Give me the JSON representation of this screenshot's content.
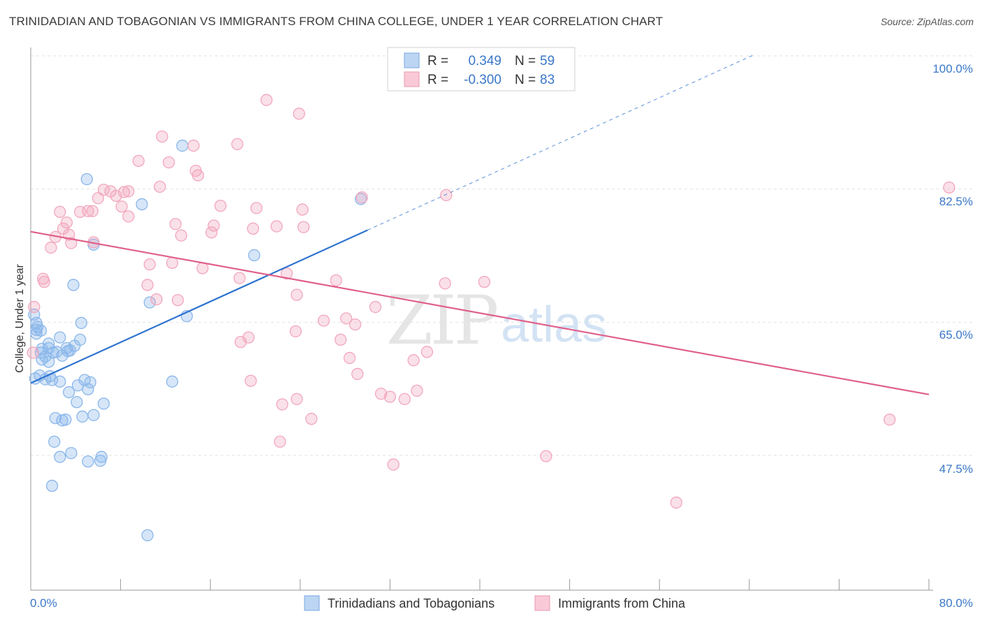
{
  "chart_data": {
    "type": "scatter",
    "title": "TRINIDADIAN AND TOBAGONIAN VS IMMIGRANTS FROM CHINA COLLEGE, UNDER 1 YEAR CORRELATION CHART",
    "source": "Source: ZipAtlas.com",
    "ylabel": "College, Under 1 year",
    "xlim": [
      0,
      80
    ],
    "ylim": [
      32,
      101
    ],
    "y_ticks": [
      {
        "value": 100.0,
        "label": "100.0%"
      },
      {
        "value": 82.5,
        "label": "82.5%"
      },
      {
        "value": 65.0,
        "label": "65.0%"
      },
      {
        "value": 47.5,
        "label": "47.5%"
      }
    ],
    "x_tick_labels": {
      "left": "0.0%",
      "right": "80.0%"
    },
    "watermark": {
      "zip": "ZIP",
      "atlas": "atlas"
    },
    "legend": {
      "r_label": "R =",
      "n_label": "N =",
      "entries": [
        {
          "r": "0.349",
          "n": "59"
        },
        {
          "r": "-0.300",
          "n": "83"
        }
      ]
    },
    "series": [
      {
        "name": "Trinidadians and Tobagonians",
        "color": "#8ab6ea",
        "line_color": "#2f73cf",
        "trend": {
          "x0": 0,
          "y0": 57.0,
          "x1": 30,
          "y1": 77.1,
          "dash_x1": 64.5,
          "dash_y1": 100.2
        },
        "points": [
          [
            0.3,
            66.0
          ],
          [
            0.5,
            64.9
          ],
          [
            0.6,
            64.4
          ],
          [
            0.5,
            64.0
          ],
          [
            0.9,
            63.9
          ],
          [
            0.5,
            63.5
          ],
          [
            1.0,
            61.5
          ],
          [
            0.9,
            61.0
          ],
          [
            1.3,
            60.5
          ],
          [
            1.6,
            62.2
          ],
          [
            1.6,
            61.6
          ],
          [
            2.0,
            61.0
          ],
          [
            0.8,
            58.0
          ],
          [
            1.3,
            57.5
          ],
          [
            1.7,
            57.9
          ],
          [
            1.9,
            57.4
          ],
          [
            1.6,
            59.8
          ],
          [
            2.6,
            57.2
          ],
          [
            2.6,
            63.0
          ],
          [
            2.8,
            60.6
          ],
          [
            3.2,
            61.6
          ],
          [
            3.3,
            61.2
          ],
          [
            3.9,
            61.9
          ],
          [
            4.5,
            64.9
          ],
          [
            4.4,
            62.7
          ],
          [
            3.4,
            55.8
          ],
          [
            4.2,
            56.7
          ],
          [
            4.8,
            57.4
          ],
          [
            5.1,
            56.2
          ],
          [
            5.3,
            57.1
          ],
          [
            4.1,
            54.5
          ],
          [
            4.6,
            52.6
          ],
          [
            5.6,
            52.8
          ],
          [
            6.5,
            54.3
          ],
          [
            2.2,
            52.4
          ],
          [
            2.8,
            52.1
          ],
          [
            3.1,
            52.2
          ],
          [
            2.1,
            49.3
          ],
          [
            2.6,
            47.3
          ],
          [
            3.6,
            47.8
          ],
          [
            5.1,
            46.7
          ],
          [
            6.2,
            46.8
          ],
          [
            6.3,
            47.3
          ],
          [
            1.9,
            43.5
          ],
          [
            5.0,
            83.8
          ],
          [
            3.8,
            69.9
          ],
          [
            5.6,
            75.2
          ],
          [
            9.9,
            80.5
          ],
          [
            10.6,
            67.6
          ],
          [
            13.5,
            88.2
          ],
          [
            13.9,
            65.8
          ],
          [
            12.6,
            57.2
          ],
          [
            19.9,
            73.8
          ],
          [
            29.4,
            81.2
          ],
          [
            10.4,
            37.0
          ],
          [
            0.4,
            57.6
          ],
          [
            1.0,
            60.1
          ],
          [
            2.3,
            61.1
          ],
          [
            3.5,
            61.3
          ]
        ]
      },
      {
        "name": "Immigrants from China",
        "color": "#f2a7bd",
        "line_color": "#e0608a",
        "trend": {
          "x0": 0,
          "y0": 76.9,
          "x1": 80,
          "y1": 55.5
        },
        "points": [
          [
            0.3,
            67.0
          ],
          [
            0.2,
            61.0
          ],
          [
            1.1,
            70.7
          ],
          [
            1.2,
            70.3
          ],
          [
            1.8,
            74.8
          ],
          [
            2.2,
            76.2
          ],
          [
            2.6,
            79.5
          ],
          [
            2.9,
            77.3
          ],
          [
            3.2,
            78.1
          ],
          [
            3.4,
            76.5
          ],
          [
            3.6,
            75.4
          ],
          [
            4.4,
            79.5
          ],
          [
            5.1,
            79.6
          ],
          [
            5.5,
            79.6
          ],
          [
            5.6,
            75.5
          ],
          [
            6.0,
            81.3
          ],
          [
            6.5,
            82.4
          ],
          [
            7.1,
            82.2
          ],
          [
            7.6,
            81.6
          ],
          [
            8.1,
            80.2
          ],
          [
            8.3,
            82.1
          ],
          [
            8.7,
            82.2
          ],
          [
            8.7,
            78.9
          ],
          [
            9.6,
            86.2
          ],
          [
            10.6,
            72.6
          ],
          [
            10.4,
            69.9
          ],
          [
            11.5,
            82.8
          ],
          [
            11.2,
            68.0
          ],
          [
            11.7,
            89.4
          ],
          [
            12.3,
            86.0
          ],
          [
            12.9,
            77.9
          ],
          [
            12.6,
            72.8
          ],
          [
            13.1,
            67.9
          ],
          [
            13.4,
            76.4
          ],
          [
            14.5,
            88.2
          ],
          [
            14.7,
            84.9
          ],
          [
            14.9,
            84.3
          ],
          [
            15.3,
            72.1
          ],
          [
            16.1,
            76.8
          ],
          [
            16.3,
            77.7
          ],
          [
            16.9,
            80.3
          ],
          [
            18.4,
            88.4
          ],
          [
            18.6,
            70.8
          ],
          [
            18.7,
            62.4
          ],
          [
            19.6,
            57.3
          ],
          [
            19.4,
            63.0
          ],
          [
            19.8,
            77.3
          ],
          [
            20.1,
            80.0
          ],
          [
            21.0,
            94.2
          ],
          [
            21.9,
            77.6
          ],
          [
            22.8,
            71.4
          ],
          [
            23.6,
            63.8
          ],
          [
            23.7,
            68.6
          ],
          [
            24.3,
            77.5
          ],
          [
            23.7,
            54.9
          ],
          [
            24.2,
            79.8
          ],
          [
            22.4,
            54.2
          ],
          [
            22.2,
            49.3
          ],
          [
            23.9,
            92.4
          ],
          [
            25.0,
            52.3
          ],
          [
            26.1,
            65.2
          ],
          [
            27.2,
            70.5
          ],
          [
            27.6,
            62.7
          ],
          [
            28.1,
            65.5
          ],
          [
            28.4,
            60.3
          ],
          [
            29.1,
            58.2
          ],
          [
            28.9,
            64.7
          ],
          [
            29.5,
            81.4
          ],
          [
            30.7,
            67.0
          ],
          [
            31.2,
            55.6
          ],
          [
            32.0,
            55.2
          ],
          [
            32.3,
            46.3
          ],
          [
            33.3,
            54.9
          ],
          [
            34.1,
            60.0
          ],
          [
            34.4,
            56.0
          ],
          [
            35.3,
            61.1
          ],
          [
            37.0,
            81.7
          ],
          [
            40.4,
            70.3
          ],
          [
            45.9,
            47.4
          ],
          [
            57.5,
            41.3
          ],
          [
            76.5,
            52.2
          ],
          [
            81.8,
            82.7
          ],
          [
            36.9,
            70.1
          ]
        ]
      }
    ]
  }
}
